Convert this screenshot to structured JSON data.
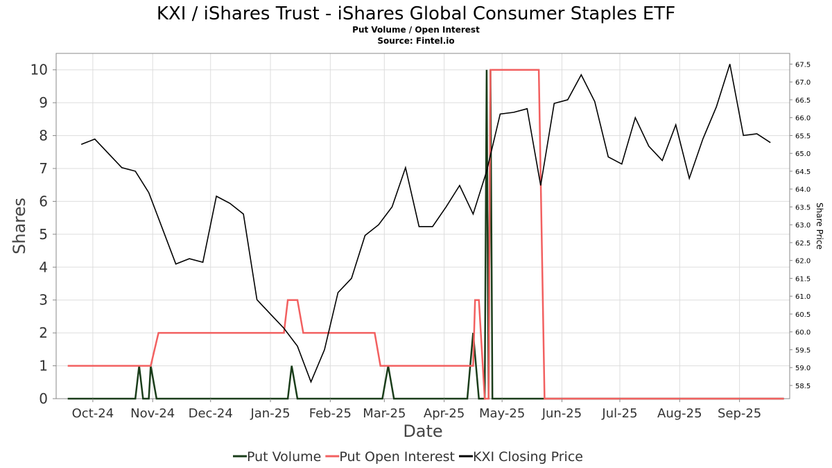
{
  "title": "KXI / iShares Trust - iShares Global Consumer Staples ETF",
  "subtitle_line1": "Put Volume / Open Interest",
  "subtitle_line2": "Source: Fintel.io",
  "chart_data": {
    "type": "line",
    "title": "KXI / iShares Trust - iShares Global Consumer Staples ETF",
    "subtitle": "Put Volume / Open Interest",
    "source": "Source: Fintel.io",
    "xlabel": "Date",
    "ylabel_left": "Shares",
    "ylabel_right": "Share Price",
    "x_range": [
      "2024-09-12",
      "2025-09-27"
    ],
    "ylim_left": [
      0,
      10.5
    ],
    "ylim_right": [
      58.13,
      67.8
    ],
    "yticks_left": [
      0,
      1,
      2,
      3,
      4,
      5,
      6,
      7,
      8,
      9,
      10
    ],
    "yticks_right": [
      "58.5",
      "59.0",
      "59.5",
      "60.0",
      "60.5",
      "61.0",
      "61.5",
      "62.0",
      "62.5",
      "63.0",
      "63.5",
      "64.0",
      "64.5",
      "65.0",
      "65.5",
      "66.0",
      "66.5",
      "67.0",
      "67.5"
    ],
    "x_ticks": [
      {
        "label": "Oct-24",
        "date": "2024-10-01"
      },
      {
        "label": "Nov-24",
        "date": "2024-11-01"
      },
      {
        "label": "Dec-24",
        "date": "2024-12-01"
      },
      {
        "label": "Jan-25",
        "date": "2025-01-01"
      },
      {
        "label": "Feb-25",
        "date": "2025-02-01"
      },
      {
        "label": "Mar-25",
        "date": "2025-03-01"
      },
      {
        "label": "Apr-25",
        "date": "2025-04-01"
      },
      {
        "label": "May-25",
        "date": "2025-05-01"
      },
      {
        "label": "Jun-25",
        "date": "2025-06-01"
      },
      {
        "label": "Jul-25",
        "date": "2025-07-01"
      },
      {
        "label": "Aug-25",
        "date": "2025-08-01"
      },
      {
        "label": "Sep-25",
        "date": "2025-09-01"
      }
    ],
    "grid": true,
    "legend_position": "bottom",
    "series": [
      {
        "name": "Put Volume",
        "axis": "left",
        "color": "#1a3d1a",
        "points": [
          [
            "2024-09-18",
            0
          ],
          [
            "2024-10-23",
            0
          ],
          [
            "2024-10-25",
            1
          ],
          [
            "2024-10-27",
            0
          ],
          [
            "2024-10-30",
            0
          ],
          [
            "2024-10-31",
            1
          ],
          [
            "2024-11-03",
            0
          ],
          [
            "2025-01-10",
            0
          ],
          [
            "2025-01-12",
            1
          ],
          [
            "2025-01-15",
            0
          ],
          [
            "2025-02-28",
            0
          ],
          [
            "2025-03-03",
            1
          ],
          [
            "2025-03-06",
            0
          ],
          [
            "2025-04-13",
            0
          ],
          [
            "2025-04-16",
            2
          ],
          [
            "2025-04-19",
            0
          ],
          [
            "2025-04-22",
            0
          ],
          [
            "2025-04-23",
            10
          ],
          [
            "2025-04-24",
            0
          ],
          [
            "2025-04-25",
            10
          ],
          [
            "2025-04-26",
            0
          ],
          [
            "2025-09-24",
            0
          ]
        ]
      },
      {
        "name": "Put Open Interest",
        "axis": "left",
        "color": "#f26060",
        "points": [
          [
            "2024-09-18",
            1
          ],
          [
            "2024-10-31",
            1
          ],
          [
            "2024-11-04",
            2
          ],
          [
            "2025-01-08",
            2
          ],
          [
            "2025-01-10",
            3
          ],
          [
            "2025-01-15",
            3
          ],
          [
            "2025-01-18",
            2
          ],
          [
            "2025-02-24",
            2
          ],
          [
            "2025-02-27",
            1
          ],
          [
            "2025-04-16",
            1
          ],
          [
            "2025-04-17",
            3
          ],
          [
            "2025-04-19",
            3
          ],
          [
            "2025-04-22",
            0
          ],
          [
            "2025-04-24",
            0
          ],
          [
            "2025-04-25",
            10
          ],
          [
            "2025-05-20",
            10
          ],
          [
            "2025-05-23",
            0
          ],
          [
            "2025-09-24",
            0
          ]
        ]
      },
      {
        "name": "KXI Closing Price",
        "axis": "right",
        "color": "#000000",
        "points": [
          [
            "2024-09-25",
            65.25
          ],
          [
            "2024-10-02",
            65.4
          ],
          [
            "2024-10-09",
            65.0
          ],
          [
            "2024-10-16",
            64.6
          ],
          [
            "2024-10-23",
            64.5
          ],
          [
            "2024-10-30",
            63.9
          ],
          [
            "2024-11-06",
            62.9
          ],
          [
            "2024-11-13",
            61.9
          ],
          [
            "2024-11-20",
            62.05
          ],
          [
            "2024-11-27",
            61.95
          ],
          [
            "2024-12-04",
            63.8
          ],
          [
            "2024-12-11",
            63.6
          ],
          [
            "2024-12-18",
            63.3
          ],
          [
            "2024-12-25",
            60.9
          ],
          [
            "2025-01-01",
            60.5
          ],
          [
            "2025-01-08",
            60.1
          ],
          [
            "2025-01-15",
            59.6
          ],
          [
            "2025-01-22",
            58.6
          ],
          [
            "2025-01-29",
            59.5
          ],
          [
            "2025-02-05",
            61.1
          ],
          [
            "2025-02-12",
            61.5
          ],
          [
            "2025-02-19",
            62.7
          ],
          [
            "2025-02-26",
            63.0
          ],
          [
            "2025-03-05",
            63.5
          ],
          [
            "2025-03-12",
            64.6
          ],
          [
            "2025-03-19",
            62.95
          ],
          [
            "2025-03-26",
            62.95
          ],
          [
            "2025-04-02",
            63.5
          ],
          [
            "2025-04-09",
            64.1
          ],
          [
            "2025-04-16",
            63.3
          ],
          [
            "2025-04-23",
            64.5
          ],
          [
            "2025-04-30",
            66.1
          ],
          [
            "2025-05-07",
            66.15
          ],
          [
            "2025-05-14",
            66.25
          ],
          [
            "2025-05-21",
            64.1
          ],
          [
            "2025-05-28",
            66.4
          ],
          [
            "2025-06-04",
            66.5
          ],
          [
            "2025-06-11",
            67.2
          ],
          [
            "2025-06-18",
            66.45
          ],
          [
            "2025-06-25",
            64.9
          ],
          [
            "2025-07-02",
            64.7
          ],
          [
            "2025-07-09",
            66.0
          ],
          [
            "2025-07-16",
            65.2
          ],
          [
            "2025-07-23",
            64.8
          ],
          [
            "2025-07-30",
            65.8
          ],
          [
            "2025-08-06",
            64.3
          ],
          [
            "2025-08-13",
            65.4
          ],
          [
            "2025-08-20",
            66.3
          ],
          [
            "2025-08-27",
            67.5
          ],
          [
            "2025-09-03",
            65.5
          ],
          [
            "2025-09-10",
            65.55
          ],
          [
            "2025-09-17",
            65.3
          ]
        ]
      }
    ]
  }
}
